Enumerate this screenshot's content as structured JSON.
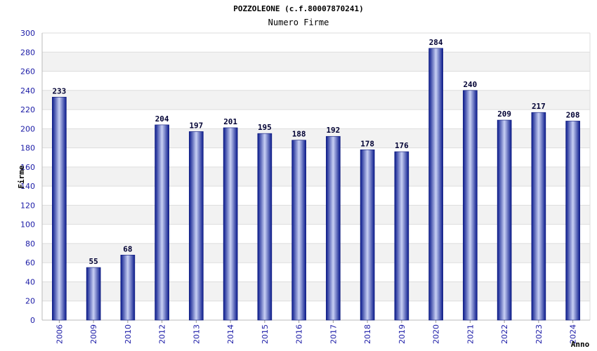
{
  "chart_data": {
    "type": "bar",
    "title": "POZZOLEONE (c.f.80007870241)",
    "subtitle": "Numero Firme",
    "xlabel": "Anno",
    "ylabel": "Firme",
    "categories": [
      "2006",
      "2009",
      "2010",
      "2012",
      "2013",
      "2014",
      "2015",
      "2016",
      "2017",
      "2018",
      "2019",
      "2020",
      "2021",
      "2022",
      "2023",
      "2024"
    ],
    "values": [
      233,
      55,
      68,
      204,
      197,
      201,
      195,
      188,
      192,
      178,
      176,
      284,
      240,
      209,
      217,
      208
    ],
    "ylim": [
      0,
      300
    ],
    "yticks": [
      0,
      20,
      40,
      60,
      80,
      100,
      120,
      140,
      160,
      180,
      200,
      220,
      240,
      260,
      280,
      300
    ],
    "grid": true,
    "data_labels": true,
    "colors": {
      "bar_dark": "#0a1a8c",
      "bar_light": "#c8d0f4",
      "band": "#f2f2f2",
      "grid": "#dddddd",
      "tick_text": "#1a1aa6"
    }
  }
}
